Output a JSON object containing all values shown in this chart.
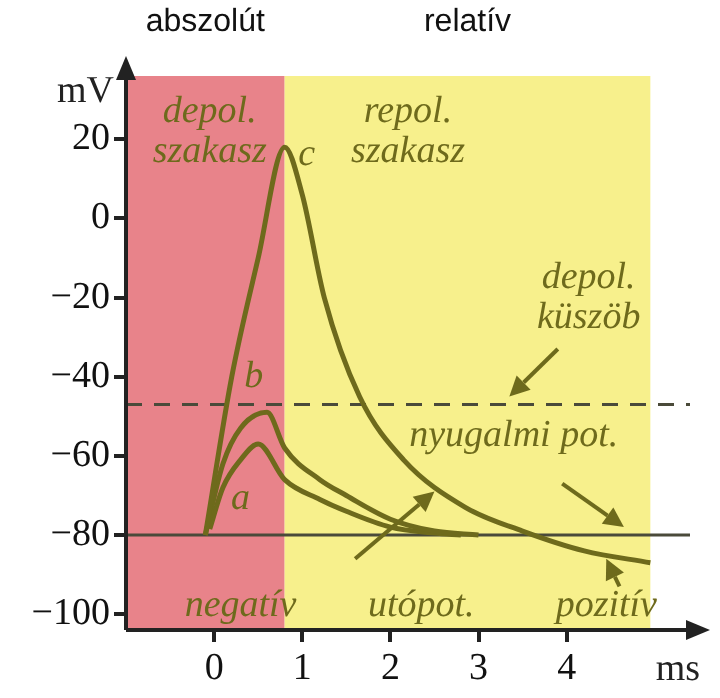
{
  "chart_data": {
    "type": "line",
    "xlabel": "ms",
    "ylabel": "mV",
    "xlim": [
      -1,
      5.4
    ],
    "xticks": [
      0,
      1,
      2,
      3,
      4
    ],
    "ylim": [
      -104,
      36
    ],
    "yticks": [
      20,
      0,
      -20,
      -40,
      -60,
      -80,
      -100
    ],
    "series": [
      {
        "color": "#6e6a1c",
        "x": [
          -0.1,
          0.2,
          0.5,
          0.8,
          1.0,
          1.25,
          1.65,
          2.15,
          2.85,
          3.5,
          4.2,
          4.95
        ],
        "values": [
          -80,
          -40,
          -10,
          18,
          6,
          -20,
          -45,
          -61,
          -73,
          -79,
          -84,
          -87
        ]
      },
      {
        "color": "#6e6a1c",
        "x": [
          -0.1,
          0.1,
          0.3,
          0.6,
          0.8,
          1.2,
          1.5,
          2.0,
          2.5,
          3.0
        ],
        "values": [
          -80,
          -62,
          -53,
          -49,
          -58,
          -66,
          -70,
          -76,
          -79,
          -80
        ]
      },
      {
        "color": "#6e6a1c",
        "x": [
          -0.05,
          0.1,
          0.3,
          0.5,
          0.8,
          1.2,
          1.5,
          2.0,
          2.5,
          2.8
        ],
        "values": [
          -78.5,
          -68,
          -61,
          -57,
          -66,
          -71,
          -74,
          -78,
          -79.5,
          -80
        ]
      }
    ],
    "bands": [
      {
        "axis": "x",
        "from": -1,
        "to": 0.8,
        "label": "abszolút",
        "color": "#e8838a"
      },
      {
        "axis": "x",
        "from": 0.8,
        "to": 4.95,
        "label": "relatív",
        "color": "#f7f08c"
      }
    ],
    "ref_lines": [
      {
        "axis": "y",
        "value": -47,
        "line_style": "dashed",
        "color": "#4a4a3a"
      },
      {
        "axis": "y",
        "value": -80,
        "line_style": "solid",
        "color": "#4a4a3a"
      }
    ],
    "annotations": [
      "depol.\nszakasz",
      "repol.\nszakasz",
      "c",
      "b",
      "a",
      "depol.\nküszöb",
      "nyugalmi pot.",
      "negatív",
      "utópot.",
      "pozitív"
    ]
  }
}
